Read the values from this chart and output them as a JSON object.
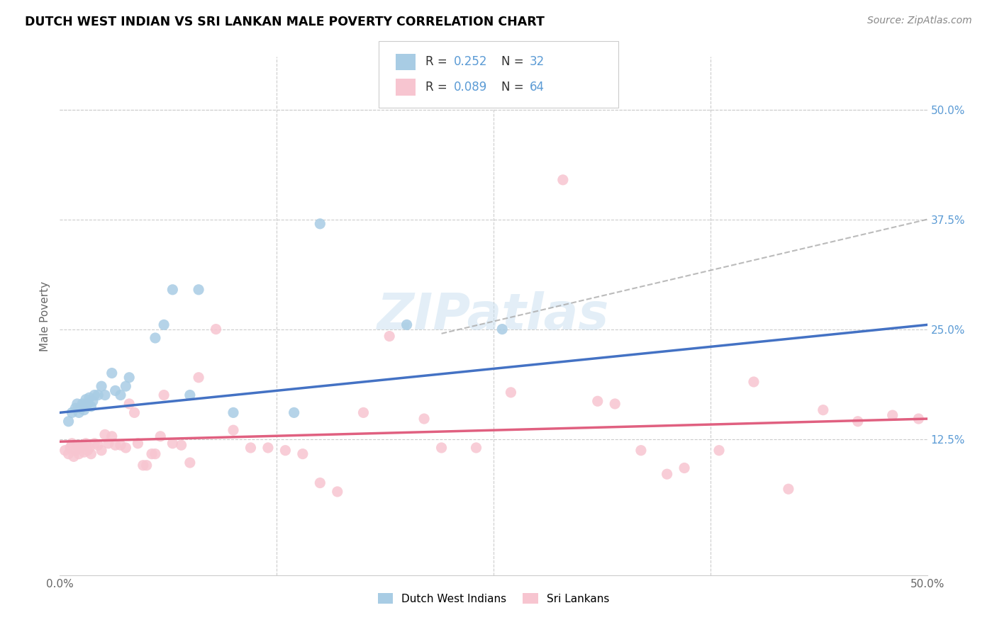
{
  "title": "DUTCH WEST INDIAN VS SRI LANKAN MALE POVERTY CORRELATION CHART",
  "source": "Source: ZipAtlas.com",
  "ylabel": "Male Poverty",
  "ytick_labels": [
    "12.5%",
    "25.0%",
    "37.5%",
    "50.0%"
  ],
  "ytick_values": [
    0.125,
    0.25,
    0.375,
    0.5
  ],
  "xlim": [
    0.0,
    0.5
  ],
  "ylim": [
    -0.03,
    0.56
  ],
  "color_blue": "#a8cce4",
  "color_pink": "#f7c5d0",
  "color_blue_line": "#4472c4",
  "color_pink_line": "#e06080",
  "color_dashed": "#aaaaaa",
  "watermark_text": "ZIPatlas",
  "watermark_color": "#c8dff0",
  "legend1_label": "Dutch West Indians",
  "legend2_label": "Sri Lankans",
  "blue_line_x0": 0.0,
  "blue_line_y0": 0.155,
  "blue_line_x1": 0.5,
  "blue_line_y1": 0.255,
  "pink_line_x0": 0.0,
  "pink_line_y0": 0.122,
  "pink_line_x1": 0.5,
  "pink_line_y1": 0.148,
  "dashed_line_x0": 0.22,
  "dashed_line_y0": 0.245,
  "dashed_line_x1": 0.5,
  "dashed_line_y1": 0.375,
  "blue_x": [
    0.005,
    0.007,
    0.009,
    0.01,
    0.011,
    0.012,
    0.013,
    0.014,
    0.015,
    0.016,
    0.017,
    0.018,
    0.019,
    0.02,
    0.022,
    0.024,
    0.026,
    0.03,
    0.032,
    0.035,
    0.038,
    0.04,
    0.055,
    0.06,
    0.065,
    0.075,
    0.08,
    0.1,
    0.135,
    0.15,
    0.2,
    0.255
  ],
  "blue_y": [
    0.145,
    0.155,
    0.16,
    0.165,
    0.155,
    0.16,
    0.165,
    0.158,
    0.17,
    0.165,
    0.172,
    0.162,
    0.168,
    0.175,
    0.175,
    0.185,
    0.175,
    0.2,
    0.18,
    0.175,
    0.185,
    0.195,
    0.24,
    0.255,
    0.295,
    0.175,
    0.295,
    0.155,
    0.155,
    0.37,
    0.255,
    0.25
  ],
  "pink_x": [
    0.003,
    0.005,
    0.006,
    0.007,
    0.008,
    0.009,
    0.01,
    0.011,
    0.012,
    0.013,
    0.014,
    0.015,
    0.016,
    0.017,
    0.018,
    0.02,
    0.022,
    0.024,
    0.026,
    0.028,
    0.03,
    0.032,
    0.035,
    0.038,
    0.04,
    0.043,
    0.045,
    0.048,
    0.05,
    0.053,
    0.055,
    0.058,
    0.06,
    0.065,
    0.07,
    0.075,
    0.08,
    0.09,
    0.1,
    0.11,
    0.12,
    0.13,
    0.14,
    0.15,
    0.16,
    0.175,
    0.19,
    0.21,
    0.22,
    0.24,
    0.26,
    0.29,
    0.31,
    0.32,
    0.335,
    0.35,
    0.36,
    0.38,
    0.4,
    0.42,
    0.44,
    0.46,
    0.48,
    0.495
  ],
  "pink_y": [
    0.112,
    0.108,
    0.115,
    0.12,
    0.105,
    0.112,
    0.118,
    0.108,
    0.115,
    0.118,
    0.11,
    0.12,
    0.112,
    0.115,
    0.108,
    0.12,
    0.118,
    0.112,
    0.13,
    0.12,
    0.128,
    0.118,
    0.118,
    0.115,
    0.165,
    0.155,
    0.12,
    0.095,
    0.095,
    0.108,
    0.108,
    0.128,
    0.175,
    0.12,
    0.118,
    0.098,
    0.195,
    0.25,
    0.135,
    0.115,
    0.115,
    0.112,
    0.108,
    0.075,
    0.065,
    0.155,
    0.242,
    0.148,
    0.115,
    0.115,
    0.178,
    0.42,
    0.168,
    0.165,
    0.112,
    0.085,
    0.092,
    0.112,
    0.19,
    0.068,
    0.158,
    0.145,
    0.152,
    0.148
  ]
}
